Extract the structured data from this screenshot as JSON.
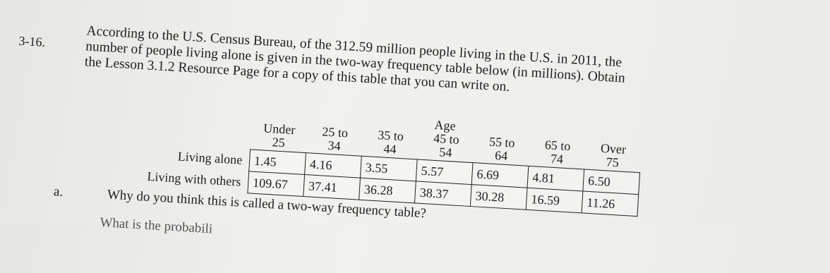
{
  "problem": {
    "number": "3-16.",
    "text": "According to the U.S. Census Bureau, of the 312.59 million people living in the U.S. in 2011, the number of people living alone is given in the two-way frequency table below (in millions). Obtain the Lesson 3.1.2 Resource Page for a copy of this table that you can write on.",
    "table": {
      "group_label": "Age",
      "columns": [
        "Under 25",
        "25 to 34",
        "35 to 44",
        "45 to 54",
        "55 to 64",
        "65 to 74",
        "Over 75"
      ],
      "rows": [
        {
          "label": "Living alone",
          "values": [
            "1.45",
            "4.16",
            "3.55",
            "5.57",
            "6.69",
            "4.81",
            "6.50"
          ]
        },
        {
          "label": "Living with others",
          "values": [
            "109.67",
            "37.41",
            "36.28",
            "38.37",
            "30.28",
            "16.59",
            "11.26"
          ]
        }
      ]
    },
    "questions": [
      {
        "letter": "a.",
        "text": "Why do you think this is called a two-way frequency table?"
      }
    ],
    "next_line": "What is the probabili"
  }
}
